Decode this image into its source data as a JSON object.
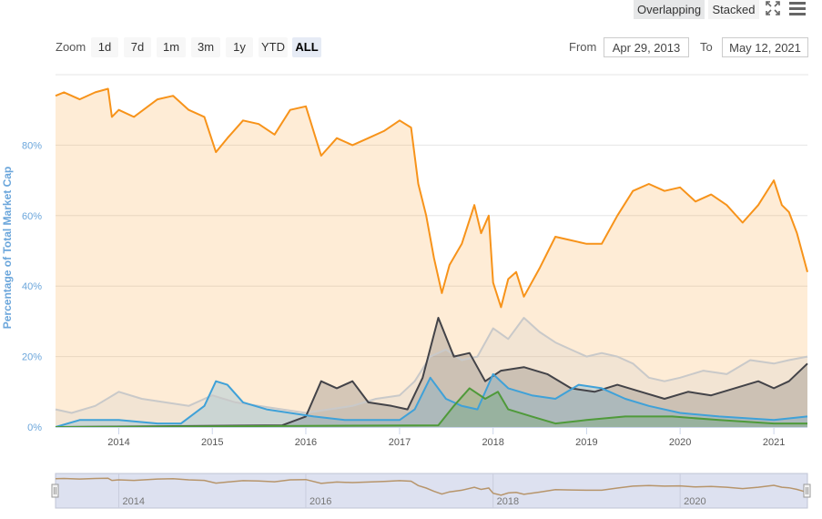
{
  "toolbar": {
    "overlapping_label": "Overlapping",
    "stacked_label": "Stacked",
    "fullscreen_icon": "fullscreen-icon",
    "menu_icon": "hamburger-menu-icon"
  },
  "zoom": {
    "label": "Zoom",
    "buttons": [
      "1d",
      "7d",
      "1m",
      "3m",
      "1y",
      "YTD",
      "ALL"
    ],
    "active": "ALL"
  },
  "range": {
    "from_label": "From",
    "from_value": "Apr 29, 2013",
    "to_label": "To",
    "to_value": "May 12, 2021"
  },
  "navigator": {
    "x_tick_labels": [
      "2014",
      "2016",
      "2018",
      "2020"
    ]
  },
  "colors": {
    "bitcoin": "#f7931a",
    "dark_series": "#434348",
    "light_series": "#c9c9c9",
    "blue_series": "#3fa1d8",
    "green_series": "#4f9a3a",
    "axis_label": "#6ba6db",
    "navigator_bg": "#dde1f0"
  },
  "chart_data": {
    "type": "area",
    "title": "",
    "xlabel": "",
    "ylabel": "Percentage of Total Market Cap",
    "x_ticks": [
      "2014",
      "2015",
      "2016",
      "2017",
      "2018",
      "2019",
      "2020",
      "2021"
    ],
    "y_ticks": [
      "0%",
      "20%",
      "40%",
      "60%",
      "80%"
    ],
    "ylim": [
      0,
      100
    ],
    "xlim": [
      "2013-04-29",
      "2021-05-12"
    ],
    "grid": true,
    "series": [
      {
        "color_key": "bitcoin",
        "points": [
          [
            "2013-04-29",
            94
          ],
          [
            "2013-06-01",
            95
          ],
          [
            "2013-08-01",
            93
          ],
          [
            "2013-10-01",
            95
          ],
          [
            "2013-11-20",
            96
          ],
          [
            "2013-12-05",
            88
          ],
          [
            "2014-01-01",
            90
          ],
          [
            "2014-03-01",
            88
          ],
          [
            "2014-06-01",
            93
          ],
          [
            "2014-08-01",
            94
          ],
          [
            "2014-10-01",
            90
          ],
          [
            "2014-12-01",
            88
          ],
          [
            "2015-01-15",
            78
          ],
          [
            "2015-03-01",
            82
          ],
          [
            "2015-05-01",
            87
          ],
          [
            "2015-07-01",
            86
          ],
          [
            "2015-09-01",
            83
          ],
          [
            "2015-11-01",
            90
          ],
          [
            "2016-01-01",
            91
          ],
          [
            "2016-03-01",
            77
          ],
          [
            "2016-05-01",
            82
          ],
          [
            "2016-07-01",
            80
          ],
          [
            "2016-09-01",
            82
          ],
          [
            "2016-11-01",
            84
          ],
          [
            "2017-01-01",
            87
          ],
          [
            "2017-02-15",
            85
          ],
          [
            "2017-03-15",
            69
          ],
          [
            "2017-04-15",
            60
          ],
          [
            "2017-05-15",
            48
          ],
          [
            "2017-06-15",
            38
          ],
          [
            "2017-07-15",
            46
          ],
          [
            "2017-09-01",
            52
          ],
          [
            "2017-10-20",
            63
          ],
          [
            "2017-11-15",
            55
          ],
          [
            "2017-12-15",
            60
          ],
          [
            "2018-01-01",
            41
          ],
          [
            "2018-02-01",
            34
          ],
          [
            "2018-03-01",
            42
          ],
          [
            "2018-04-01",
            44
          ],
          [
            "2018-05-01",
            37
          ],
          [
            "2018-07-01",
            45
          ],
          [
            "2018-09-01",
            54
          ],
          [
            "2018-11-01",
            53
          ],
          [
            "2019-01-01",
            52
          ],
          [
            "2019-03-01",
            52
          ],
          [
            "2019-05-01",
            60
          ],
          [
            "2019-07-01",
            67
          ],
          [
            "2019-09-01",
            69
          ],
          [
            "2019-11-01",
            67
          ],
          [
            "2020-01-01",
            68
          ],
          [
            "2020-03-01",
            64
          ],
          [
            "2020-05-01",
            66
          ],
          [
            "2020-07-01",
            63
          ],
          [
            "2020-09-01",
            58
          ],
          [
            "2020-11-01",
            63
          ],
          [
            "2021-01-01",
            70
          ],
          [
            "2021-02-01",
            63
          ],
          [
            "2021-03-01",
            61
          ],
          [
            "2021-04-01",
            55
          ],
          [
            "2021-05-12",
            44
          ]
        ]
      },
      {
        "color_key": "light_series",
        "points": [
          [
            "2013-04-29",
            5
          ],
          [
            "2013-07-01",
            4
          ],
          [
            "2013-10-01",
            6
          ],
          [
            "2014-01-01",
            10
          ],
          [
            "2014-04-01",
            8
          ],
          [
            "2014-07-01",
            7
          ],
          [
            "2014-10-01",
            6
          ],
          [
            "2015-01-01",
            9
          ],
          [
            "2015-04-01",
            7
          ],
          [
            "2015-07-01",
            6
          ],
          [
            "2015-10-01",
            5
          ],
          [
            "2016-01-01",
            4
          ],
          [
            "2016-04-01",
            5
          ],
          [
            "2016-07-01",
            6
          ],
          [
            "2016-10-01",
            8
          ],
          [
            "2017-01-01",
            9
          ],
          [
            "2017-03-01",
            13
          ],
          [
            "2017-05-01",
            20
          ],
          [
            "2017-07-01",
            22
          ],
          [
            "2017-09-01",
            19
          ],
          [
            "2017-11-01",
            20
          ],
          [
            "2018-01-01",
            28
          ],
          [
            "2018-03-01",
            25
          ],
          [
            "2018-05-01",
            31
          ],
          [
            "2018-07-01",
            27
          ],
          [
            "2018-09-01",
            24
          ],
          [
            "2018-11-01",
            22
          ],
          [
            "2019-01-01",
            20
          ],
          [
            "2019-03-01",
            21
          ],
          [
            "2019-05-01",
            20
          ],
          [
            "2019-07-01",
            18
          ],
          [
            "2019-09-01",
            14
          ],
          [
            "2019-11-01",
            13
          ],
          [
            "2020-01-01",
            14
          ],
          [
            "2020-04-01",
            16
          ],
          [
            "2020-07-01",
            15
          ],
          [
            "2020-10-01",
            19
          ],
          [
            "2021-01-01",
            18
          ],
          [
            "2021-03-01",
            19
          ],
          [
            "2021-05-12",
            20
          ]
        ]
      },
      {
        "color_key": "dark_series",
        "points": [
          [
            "2013-04-29",
            0
          ],
          [
            "2015-10-01",
            0.5
          ],
          [
            "2016-01-01",
            3
          ],
          [
            "2016-03-01",
            13
          ],
          [
            "2016-05-01",
            11
          ],
          [
            "2016-07-01",
            13
          ],
          [
            "2016-09-01",
            7
          ],
          [
            "2016-12-01",
            6
          ],
          [
            "2017-02-01",
            5
          ],
          [
            "2017-04-01",
            14
          ],
          [
            "2017-06-01",
            31
          ],
          [
            "2017-08-01",
            20
          ],
          [
            "2017-10-01",
            21
          ],
          [
            "2017-12-01",
            13
          ],
          [
            "2018-02-01",
            16
          ],
          [
            "2018-05-01",
            17
          ],
          [
            "2018-08-01",
            15
          ],
          [
            "2018-11-01",
            11
          ],
          [
            "2019-02-01",
            10
          ],
          [
            "2019-05-01",
            12
          ],
          [
            "2019-08-01",
            10
          ],
          [
            "2019-11-01",
            8
          ],
          [
            "2020-02-01",
            10
          ],
          [
            "2020-05-01",
            9
          ],
          [
            "2020-08-01",
            11
          ],
          [
            "2020-11-01",
            13
          ],
          [
            "2021-01-01",
            11
          ],
          [
            "2021-03-01",
            13
          ],
          [
            "2021-05-12",
            18
          ]
        ]
      },
      {
        "color_key": "blue_series",
        "points": [
          [
            "2013-04-29",
            0
          ],
          [
            "2013-08-01",
            2
          ],
          [
            "2014-01-01",
            2
          ],
          [
            "2014-06-01",
            1
          ],
          [
            "2014-09-01",
            1
          ],
          [
            "2014-12-01",
            6
          ],
          [
            "2015-01-15",
            13
          ],
          [
            "2015-03-01",
            12
          ],
          [
            "2015-05-01",
            7
          ],
          [
            "2015-08-01",
            5
          ],
          [
            "2015-11-01",
            4
          ],
          [
            "2016-02-01",
            3
          ],
          [
            "2016-06-01",
            2
          ],
          [
            "2016-10-01",
            2
          ],
          [
            "2017-01-01",
            2
          ],
          [
            "2017-03-01",
            5
          ],
          [
            "2017-05-01",
            14
          ],
          [
            "2017-07-01",
            8
          ],
          [
            "2017-09-01",
            6
          ],
          [
            "2017-11-01",
            5
          ],
          [
            "2018-01-01",
            15
          ],
          [
            "2018-03-01",
            11
          ],
          [
            "2018-06-01",
            9
          ],
          [
            "2018-09-01",
            8
          ],
          [
            "2018-12-01",
            12
          ],
          [
            "2019-03-01",
            11
          ],
          [
            "2019-06-01",
            8
          ],
          [
            "2019-09-01",
            6
          ],
          [
            "2020-01-01",
            4
          ],
          [
            "2020-06-01",
            3
          ],
          [
            "2021-01-01",
            2
          ],
          [
            "2021-05-12",
            3
          ]
        ]
      },
      {
        "color_key": "green_series",
        "points": [
          [
            "2013-04-29",
            0
          ],
          [
            "2017-06-01",
            0.5
          ],
          [
            "2017-08-01",
            6
          ],
          [
            "2017-10-01",
            11
          ],
          [
            "2017-12-01",
            8
          ],
          [
            "2018-01-20",
            10
          ],
          [
            "2018-03-01",
            5
          ],
          [
            "2018-06-01",
            3
          ],
          [
            "2018-09-01",
            1
          ],
          [
            "2019-01-01",
            2
          ],
          [
            "2019-06-01",
            3
          ],
          [
            "2019-12-01",
            3
          ],
          [
            "2020-06-01",
            2
          ],
          [
            "2021-01-01",
            1
          ],
          [
            "2021-05-12",
            1
          ]
        ]
      }
    ]
  }
}
